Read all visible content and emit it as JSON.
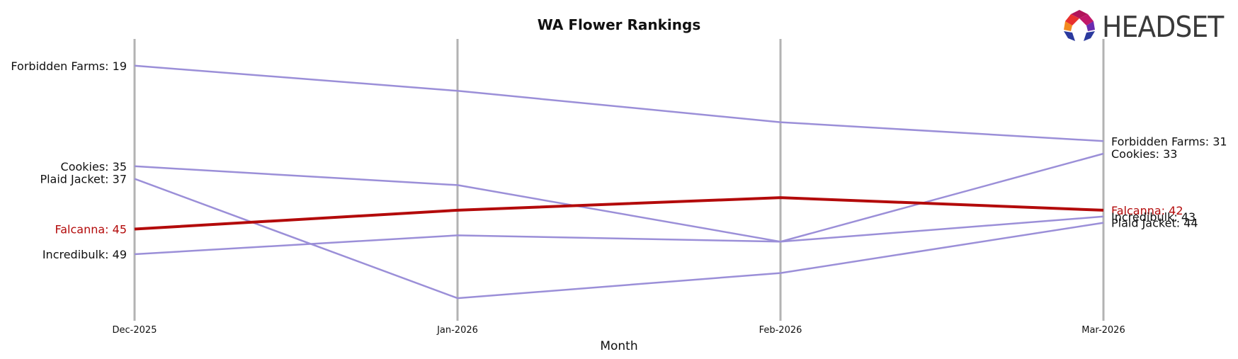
{
  "chart_data": {
    "type": "line",
    "title": "WA Flower Rankings",
    "xlabel": "Month",
    "ylabel": "",
    "categories": [
      "Dec-2025",
      "Jan-2026",
      "Feb-2026",
      "Mar-2026"
    ],
    "ylim": [
      17,
      57
    ],
    "y_inverted": true,
    "grid": "vertical lines at each month",
    "series": [
      {
        "name": "Forbidden Farms",
        "values": [
          19,
          23,
          28,
          31
        ],
        "color": "#9b8fd8",
        "highlight": false
      },
      {
        "name": "Cookies",
        "values": [
          35,
          38,
          47,
          33
        ],
        "color": "#9b8fd8",
        "highlight": false
      },
      {
        "name": "Plaid Jacket",
        "values": [
          37,
          56,
          52,
          44
        ],
        "color": "#9b8fd8",
        "highlight": false
      },
      {
        "name": "Falcanna",
        "values": [
          45,
          42,
          40,
          42
        ],
        "color": "#b30a0a",
        "highlight": true
      },
      {
        "name": "Incredibulk",
        "values": [
          49,
          46,
          47,
          43
        ],
        "color": "#9b8fd8",
        "highlight": false
      }
    ],
    "start_labels": [
      "Forbidden Farms: 19",
      "Cookies: 35",
      "Plaid Jacket: 37",
      "Falcanna: 45",
      "Incredibulk: 49"
    ],
    "end_labels": [
      "Forbidden Farms: 31",
      "Cookies: 33",
      "Falcanna: 42",
      "Incredibulk: 43",
      "Plaid Jacket: 44"
    ]
  },
  "logo": {
    "text": "HEADSET",
    "colors": [
      "#e8302e",
      "#f28a1e",
      "#b0135a",
      "#2b3a9e",
      "#6a2bb0"
    ]
  }
}
